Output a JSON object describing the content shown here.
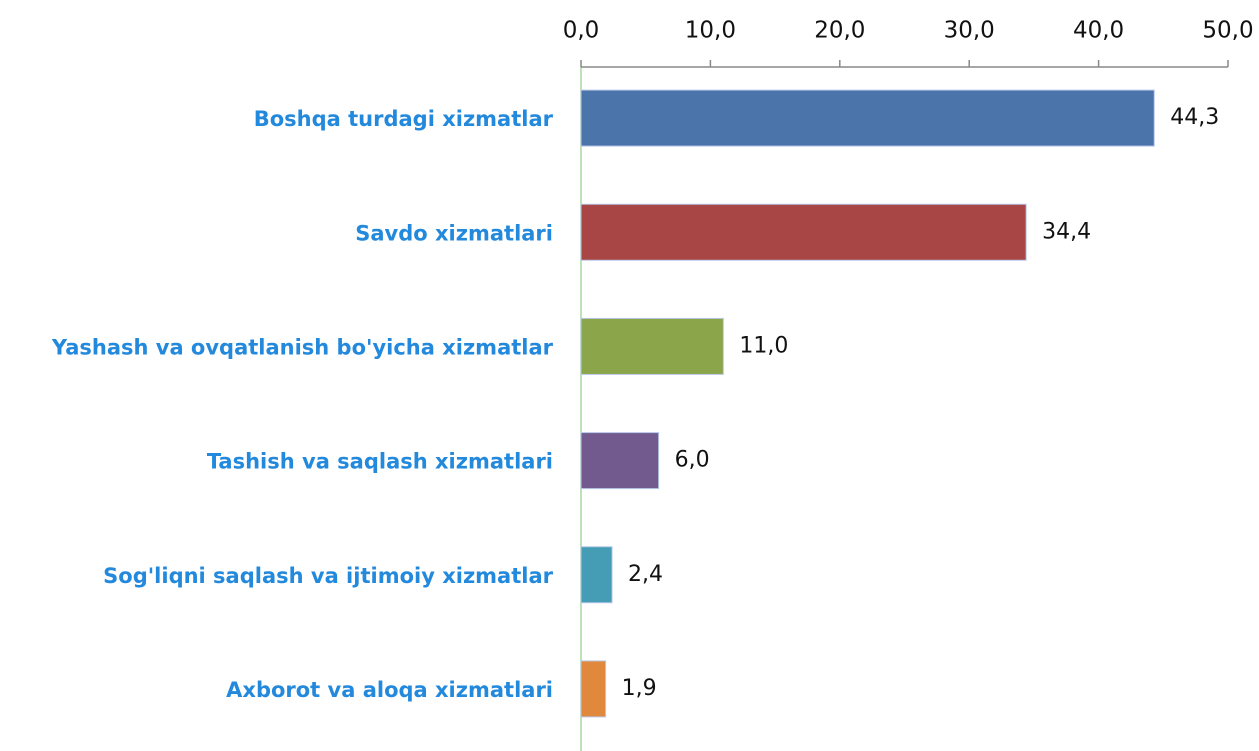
{
  "chart_data": {
    "type": "bar",
    "orientation": "horizontal",
    "categories": [
      "Boshqa turdagi xizmatlar",
      "Savdo xizmatlari",
      "Yashash va ovqatlanish bo'yicha xizmatlar",
      "Tashish va saqlash xizmatlari",
      "Sog'liqni saqlash va ijtimoiy xizmatlar",
      "Axborot va aloqa xizmatlari"
    ],
    "values": [
      44.3,
      34.4,
      11.0,
      6.0,
      2.4,
      1.9
    ],
    "value_labels": [
      "44,3",
      "34,4",
      "11,0",
      "6,0",
      "2,4",
      "1,9"
    ],
    "colors": [
      "#4a74aa",
      "#a84545",
      "#8ba54a",
      "#725a8e",
      "#449db5",
      "#e0883b"
    ],
    "xlim": [
      0,
      50
    ],
    "xticks": [
      {
        "value": 0,
        "label": "0,0"
      },
      {
        "value": 10,
        "label": "10,0"
      },
      {
        "value": 20,
        "label": "20,0"
      },
      {
        "value": 30,
        "label": "30,0"
      },
      {
        "value": 40,
        "label": "40,0"
      },
      {
        "value": 50,
        "label": "50,0"
      }
    ]
  }
}
